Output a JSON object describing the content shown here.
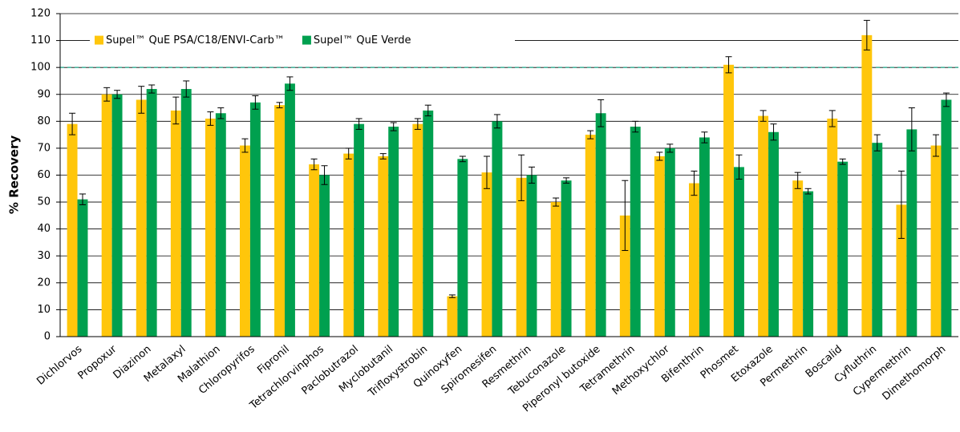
{
  "chart_data": {
    "type": "bar",
    "ylabel": "% Recovery",
    "categories": [
      "Dichlorvos",
      "Propoxur",
      "Diazinon",
      "Metalaxyl",
      "Malathion",
      "Chloropyrifos",
      "Fipronil",
      "Tetrachlorvinphos",
      "Paclobutrazol",
      "Myclobutanil",
      "Trifloxystrobin",
      "Quinoxyfen",
      "Spiromesifen",
      "Resmethrin",
      "Tebuconazole",
      "Piperonyl butoxide",
      "Tetramethrin",
      "Methoxychlor",
      "Bifenthrin",
      "Phosmet",
      "Etoxazole",
      "Permethrin",
      "Boscalid",
      "Cyfluthrin",
      "Cypermethrin",
      "Dimethomorph"
    ],
    "series": [
      {
        "name": "Supel™ QuE PSA/C18/ENVI-Carb™",
        "color": "#ffc60b",
        "values": [
          79,
          90,
          88,
          84,
          81,
          71,
          86,
          64,
          68,
          67,
          79,
          15,
          61,
          59,
          50,
          75,
          45,
          67,
          57,
          101,
          82,
          58,
          81,
          112,
          49,
          71
        ],
        "errors": [
          4,
          2.5,
          5,
          5,
          2.5,
          2.5,
          1,
          2,
          2,
          1,
          2,
          0.5,
          6,
          8.5,
          1.5,
          1.5,
          13,
          1.5,
          4.5,
          3,
          2,
          3,
          3,
          5.5,
          12.5,
          4
        ]
      },
      {
        "name": "Supel™ QuE Verde",
        "color": "#00a04f",
        "values": [
          51,
          90,
          92,
          92,
          83,
          87,
          94,
          60,
          79,
          78,
          84,
          66,
          80,
          60,
          58,
          83,
          78,
          70,
          74,
          63,
          76,
          54,
          65,
          72,
          77,
          88
        ],
        "errors": [
          2,
          1.5,
          1.5,
          3,
          2,
          2.5,
          2.5,
          3.5,
          2,
          1.5,
          2,
          1,
          2.5,
          3,
          1,
          5,
          2,
          1.5,
          2,
          4.5,
          3,
          1,
          1,
          3,
          8,
          2.5
        ]
      }
    ],
    "ylim": [
      0,
      120
    ],
    "yticks": [
      0,
      10,
      20,
      30,
      40,
      50,
      60,
      70,
      80,
      90,
      100,
      110,
      120
    ],
    "grid": true,
    "reference_line": 100,
    "reference_color": "#3fb39a",
    "legend": "upper left"
  }
}
